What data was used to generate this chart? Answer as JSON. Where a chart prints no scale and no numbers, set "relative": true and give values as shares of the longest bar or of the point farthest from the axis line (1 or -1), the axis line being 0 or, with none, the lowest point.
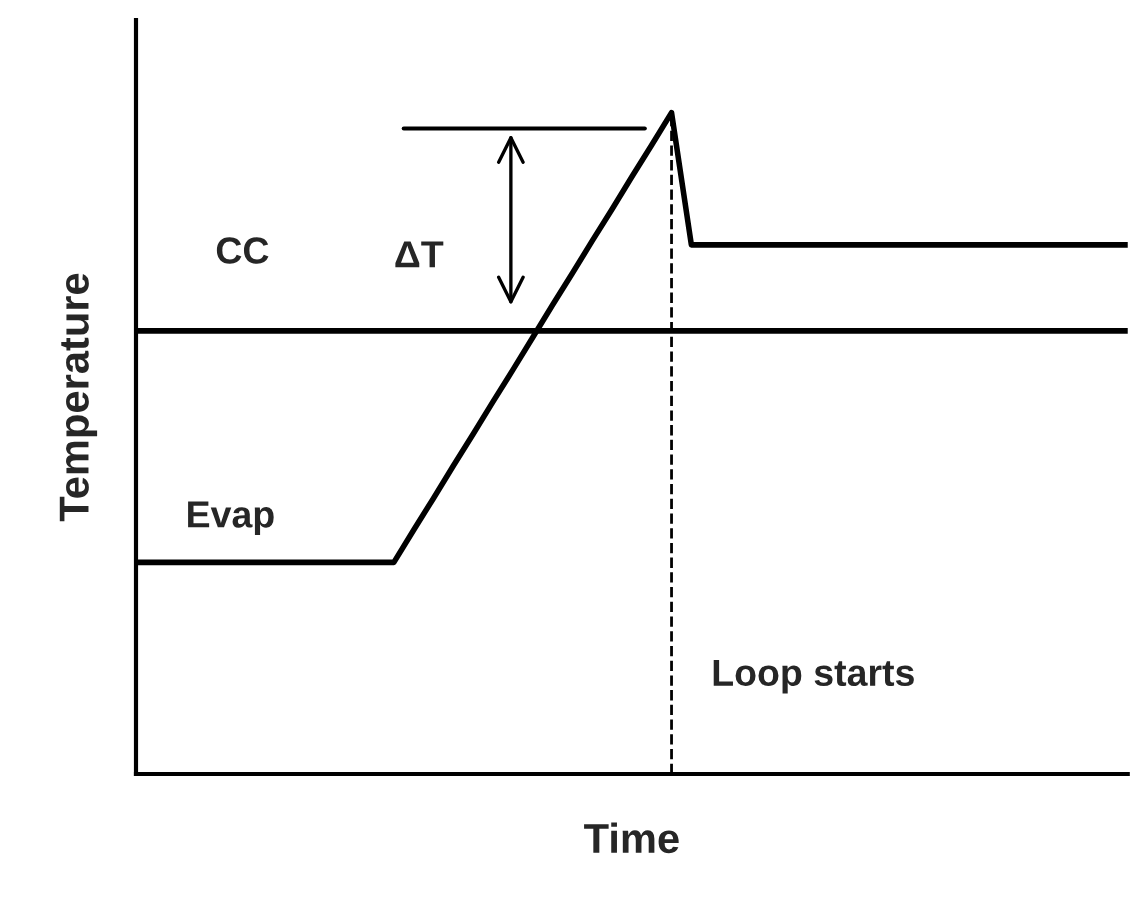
{
  "chart_data": {
    "type": "line",
    "relative": true,
    "xlabel": "Time",
    "ylabel": "Temperature",
    "marker": "none",
    "line_style": "solid",
    "categories": [
      null,
      null,
      null,
      null,
      null,
      null,
      null,
      null,
      null,
      null,
      null,
      null,
      null,
      null,
      null,
      null,
      null,
      null,
      null,
      null,
      null,
      null,
      null,
      null,
      null,
      null,
      null,
      null,
      null,
      null,
      null,
      null,
      null,
      null,
      null,
      null,
      null,
      null,
      null,
      null,
      null,
      null,
      null,
      null,
      null,
      null,
      null,
      null,
      null,
      null,
      null
    ],
    "series": [
      {
        "color": "#000000",
        "values": [
          0.32,
          0.32,
          0.32,
          0.32,
          0.32,
          0.32,
          0.32,
          0.32,
          0.32,
          0.32,
          0.32,
          0.32,
          0.32,
          0.32,
          0.369,
          0.417,
          0.466,
          0.514,
          0.563,
          0.611,
          0.66,
          0.709,
          0.757,
          0.806,
          0.854,
          0.903,
          0.951,
          1.0,
          0.8,
          0.8,
          0.8,
          0.8,
          0.8,
          0.8,
          0.8,
          0.8,
          0.8,
          0.8,
          0.8,
          0.8,
          0.8,
          0.8,
          0.8,
          0.8,
          0.8,
          0.8,
          0.8,
          0.8,
          0.8,
          0.8,
          0.8
        ]
      },
      {
        "color": "#000000",
        "values": [
          0.67,
          0.67,
          0.67,
          0.67,
          0.67,
          0.67,
          0.67,
          0.67,
          0.67,
          0.67,
          0.67,
          0.67,
          0.67,
          0.67,
          0.67,
          0.67,
          0.67,
          0.67,
          0.67,
          0.67,
          0.67,
          0.67,
          0.67,
          0.67,
          0.67,
          0.67,
          0.67,
          0.67,
          0.67,
          0.67,
          0.67,
          0.67,
          0.67,
          0.67,
          0.67,
          0.67,
          0.67,
          0.67,
          0.67,
          0.67,
          0.67,
          0.67,
          0.67,
          0.67,
          0.67,
          0.67,
          0.67,
          0.67,
          0.67,
          0.67,
          0.67
        ]
      }
    ],
    "annotations": [
      "CC",
      "ΔT",
      "Evap",
      "Loop starts"
    ]
  }
}
